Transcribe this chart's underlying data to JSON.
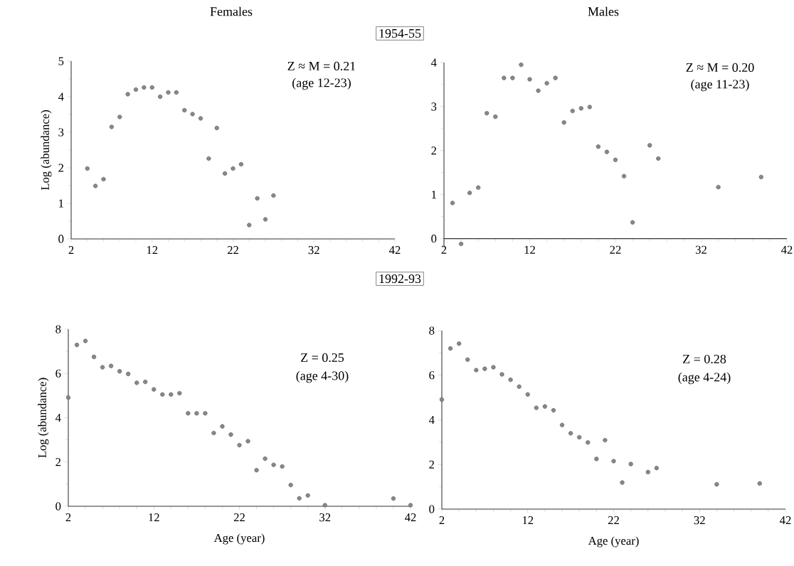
{
  "chart_data": [
    {
      "type": "scatter",
      "title": "Females",
      "subtitle": "1954-55",
      "ylabel": "Log (abundance)",
      "annotations": [
        "Z ≈ M = 0.21",
        "(age 12-23)"
      ],
      "color": "#555555",
      "x": [
        4,
        5,
        6,
        7,
        8,
        9,
        10,
        11,
        12,
        13,
        14,
        15,
        16,
        17,
        18,
        19,
        20,
        21,
        22,
        23,
        24,
        25,
        26,
        27
      ],
      "values": [
        1.98,
        1.49,
        1.68,
        3.15,
        3.43,
        4.07,
        4.2,
        4.26,
        4.26,
        4.0,
        4.12,
        4.12,
        3.62,
        3.51,
        3.39,
        2.26,
        3.12,
        1.84,
        1.98,
        2.1,
        0.39,
        1.14,
        0.55,
        1.22
      ],
      "xlim": [
        2,
        42
      ],
      "ylim": [
        0,
        5
      ],
      "xticks": [
        2,
        12,
        22,
        32,
        42
      ],
      "yticks": [
        0,
        1,
        2,
        3,
        4,
        5
      ]
    },
    {
      "type": "scatter",
      "title": "Males",
      "annotations": [
        "Z ≈ M = 0.20",
        "(age 11-23)"
      ],
      "color": "#555555",
      "x": [
        3,
        4,
        5,
        6,
        7,
        8,
        9,
        10,
        11,
        12,
        13,
        14,
        15,
        16,
        17,
        18,
        19,
        20,
        21,
        22,
        23,
        24,
        26,
        27,
        34,
        39
      ],
      "values": [
        0.81,
        -0.12,
        1.04,
        1.16,
        2.85,
        2.77,
        3.65,
        3.65,
        3.95,
        3.62,
        3.36,
        3.53,
        3.65,
        2.64,
        2.9,
        2.96,
        2.99,
        2.09,
        1.97,
        1.79,
        1.42,
        0.37,
        2.12,
        1.82,
        1.17,
        1.4
      ],
      "xlim": [
        2,
        42
      ],
      "ylim": [
        -0.2,
        4
      ],
      "xticks": [
        2,
        12,
        22,
        32,
        42
      ],
      "yticks": [
        0,
        1,
        2,
        3,
        4
      ]
    },
    {
      "type": "scatter",
      "subtitle": "1992-93",
      "xlabel": "Age (year)",
      "ylabel": "Log (abundance)",
      "annotations": [
        "Z = 0.25",
        "(age 4-30)"
      ],
      "color": "#555555",
      "x": [
        2,
        3,
        4,
        5,
        6,
        7,
        8,
        9,
        10,
        11,
        12,
        13,
        14,
        15,
        16,
        17,
        18,
        19,
        20,
        21,
        22,
        23,
        24,
        25,
        26,
        27,
        28,
        29,
        30,
        32,
        40,
        42
      ],
      "values": [
        4.91,
        7.29,
        7.47,
        6.75,
        6.28,
        6.34,
        6.1,
        5.98,
        5.58,
        5.62,
        5.28,
        5.05,
        5.05,
        5.11,
        4.2,
        4.2,
        4.2,
        3.31,
        3.61,
        3.24,
        2.76,
        2.94,
        1.63,
        2.15,
        1.87,
        1.8,
        0.96,
        0.36,
        0.49,
        0.05,
        0.35,
        0.05
      ],
      "xlim": [
        2,
        42
      ],
      "ylim": [
        0,
        8
      ],
      "xticks": [
        2,
        12,
        22,
        32,
        42
      ],
      "yticks": [
        0,
        2,
        4,
        6,
        8
      ]
    },
    {
      "type": "scatter",
      "xlabel": "Age (year)",
      "annotations": [
        "Z = 0.28",
        "(age 4-24)"
      ],
      "color": "#555555",
      "x": [
        2,
        3,
        4,
        5,
        6,
        7,
        8,
        9,
        10,
        11,
        12,
        13,
        14,
        15,
        16,
        17,
        18,
        19,
        20,
        21,
        22,
        23,
        24,
        26,
        27,
        34,
        39
      ],
      "values": [
        4.91,
        7.2,
        7.42,
        6.7,
        6.23,
        6.29,
        6.36,
        6.04,
        5.8,
        5.49,
        5.14,
        4.54,
        4.6,
        4.43,
        3.77,
        3.4,
        3.22,
        2.99,
        2.25,
        3.09,
        2.15,
        1.19,
        2.02,
        1.66,
        1.84,
        1.11,
        1.15
      ],
      "xlim": [
        2,
        42
      ],
      "ylim": [
        0,
        8
      ],
      "xticks": [
        2,
        12,
        22,
        32,
        42
      ],
      "yticks": [
        0,
        2,
        4,
        6,
        8
      ]
    }
  ]
}
